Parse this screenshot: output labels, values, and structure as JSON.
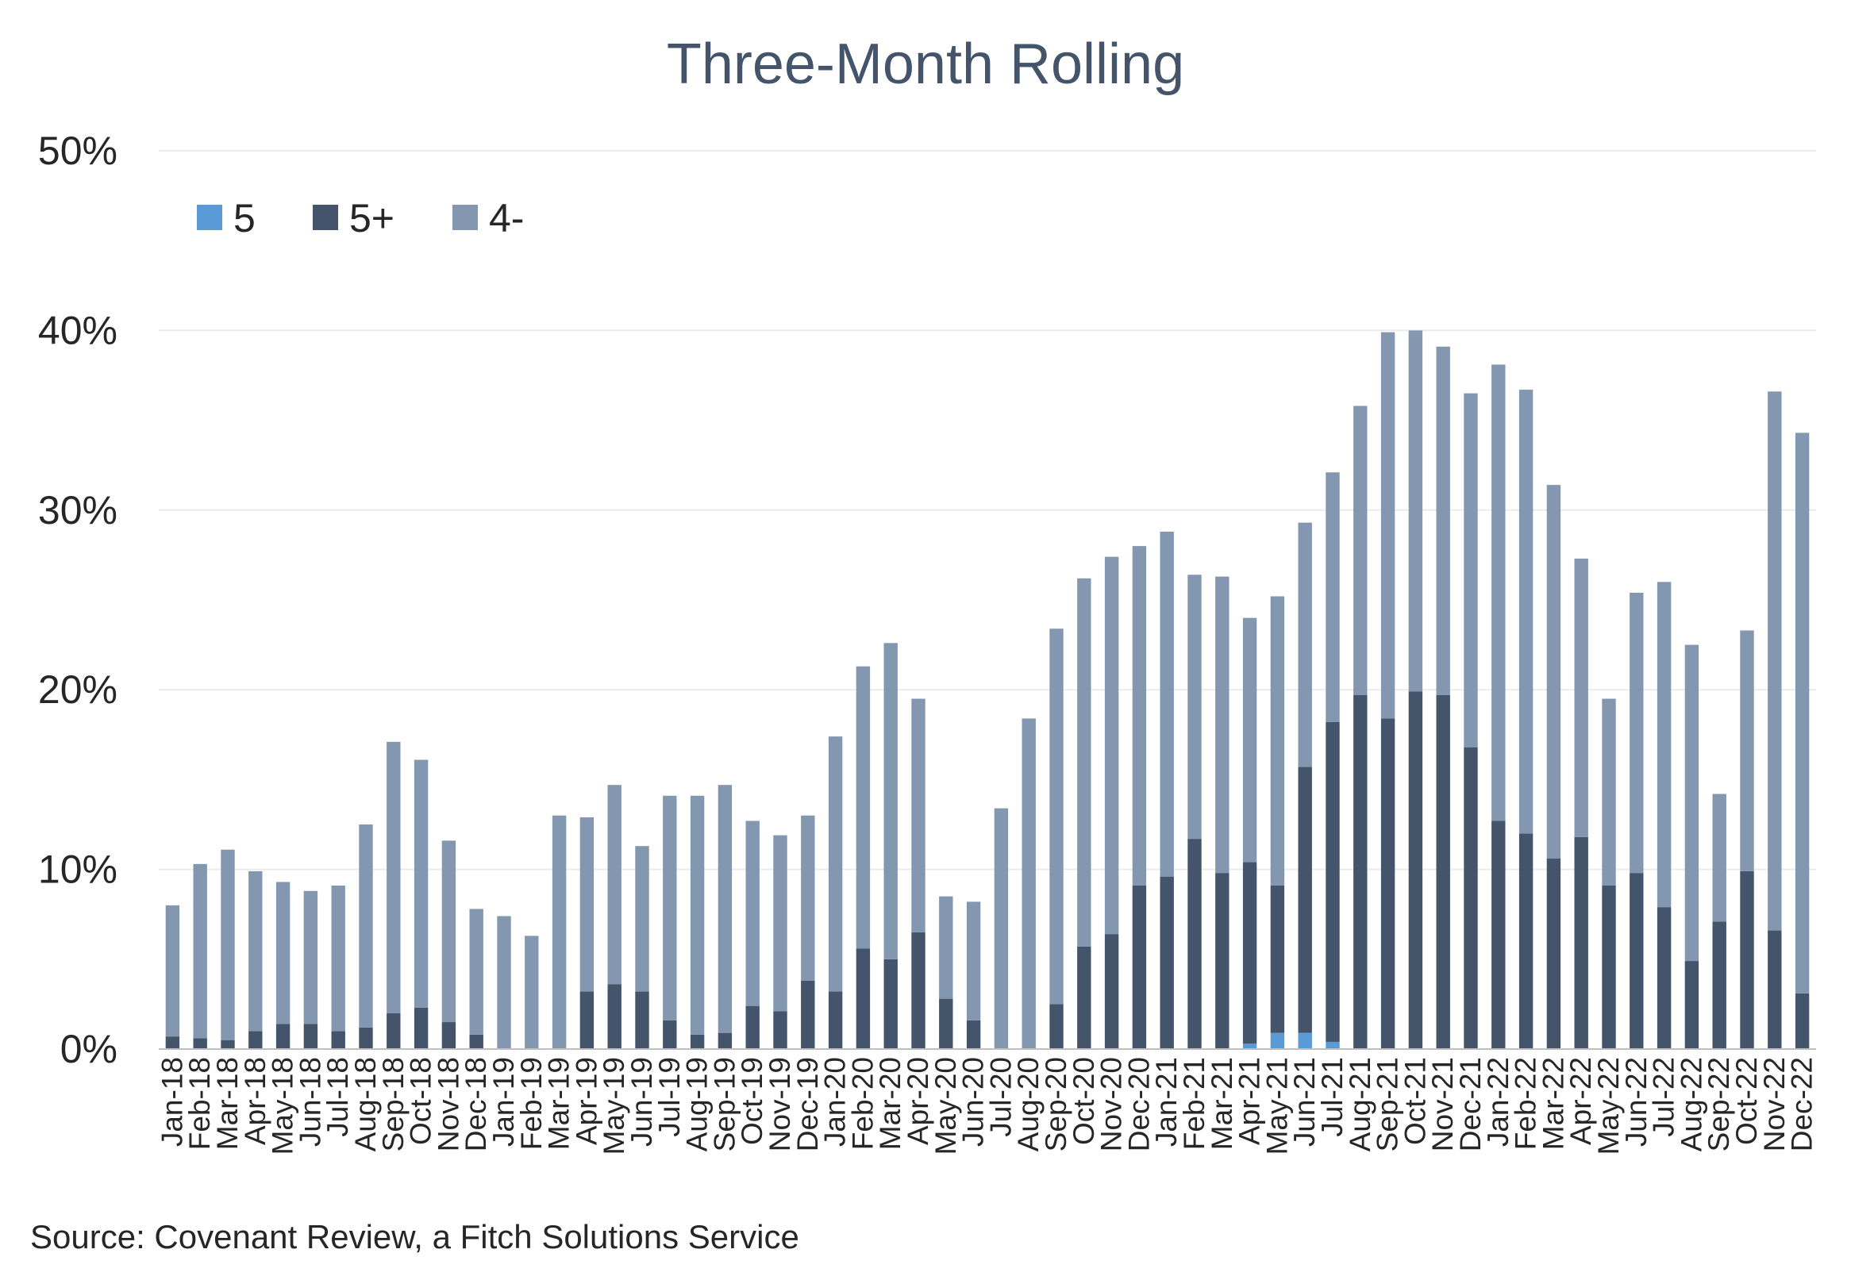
{
  "chart_data": {
    "type": "bar",
    "stacked": true,
    "title": "Three-Month Rolling",
    "ylim": [
      0,
      50
    ],
    "yticks": [
      "0%",
      "10%",
      "20%",
      "30%",
      "40%",
      "50%"
    ],
    "grid": true,
    "legend_position": "top-left",
    "categories": [
      "Jan-18",
      "Feb-18",
      "Mar-18",
      "Apr-18",
      "May-18",
      "Jun-18",
      "Jul-18",
      "Aug-18",
      "Sep-18",
      "Oct-18",
      "Nov-18",
      "Dec-18",
      "Jan-19",
      "Feb-19",
      "Mar-19",
      "Apr-19",
      "May-19",
      "Jun-19",
      "Jul-19",
      "Aug-19",
      "Sep-19",
      "Oct-19",
      "Nov-19",
      "Dec-19",
      "Jan-20",
      "Feb-20",
      "Mar-20",
      "Apr-20",
      "May-20",
      "Jun-20",
      "Jul-20",
      "Aug-20",
      "Sep-20",
      "Oct-20",
      "Nov-20",
      "Dec-20",
      "Jan-21",
      "Feb-21",
      "Mar-21",
      "Apr-21",
      "May-21",
      "Jun-21",
      "Jul-21",
      "Aug-21",
      "Sep-21",
      "Oct-21",
      "Nov-21",
      "Dec-21",
      "Jan-22",
      "Feb-22",
      "Mar-22",
      "Apr-22",
      "May-22",
      "Jun-22",
      "Jul-22",
      "Aug-22",
      "Sep-22",
      "Oct-22",
      "Nov-22",
      "Dec-22"
    ],
    "series": [
      {
        "name": "5",
        "color": "#5b9bd5",
        "values": [
          0,
          0,
          0,
          0,
          0,
          0,
          0,
          0,
          0,
          0,
          0,
          0,
          0,
          0,
          0,
          0,
          0,
          0,
          0,
          0,
          0,
          0,
          0,
          0,
          0,
          0,
          0,
          0,
          0,
          0,
          0,
          0,
          0,
          0,
          0,
          0,
          0,
          0,
          0,
          0.3,
          0.9,
          0.9,
          0.4,
          0,
          0,
          0,
          0,
          0,
          0,
          0,
          0,
          0,
          0,
          0,
          0,
          0,
          0,
          0,
          0,
          0
        ]
      },
      {
        "name": "5+",
        "color": "#44546a",
        "values": [
          0.7,
          0.6,
          0.5,
          1.0,
          1.4,
          1.4,
          1.0,
          1.2,
          2.0,
          2.3,
          1.5,
          0.8,
          0,
          0,
          0,
          3.2,
          3.6,
          3.2,
          1.6,
          0.8,
          0.9,
          2.4,
          2.1,
          3.8,
          3.2,
          5.6,
          5.0,
          6.5,
          2.8,
          1.6,
          0,
          0,
          2.5,
          5.7,
          6.4,
          9.1,
          9.6,
          11.7,
          9.8,
          10.1,
          8.2,
          14.8,
          17.8,
          19.7,
          18.4,
          19.9,
          19.7,
          16.8,
          12.7,
          12.0,
          10.6,
          11.8,
          9.1,
          9.8,
          7.9,
          4.9,
          7.1,
          9.9,
          6.6,
          3.1
        ]
      },
      {
        "name": "4-",
        "color": "#8497b0",
        "values": [
          7.3,
          9.7,
          10.6,
          8.9,
          7.9,
          7.4,
          8.1,
          11.3,
          15.1,
          13.8,
          10.1,
          7.0,
          7.4,
          6.3,
          13.0,
          9.7,
          11.1,
          8.1,
          12.5,
          13.3,
          13.8,
          10.3,
          9.8,
          9.2,
          14.2,
          15.7,
          17.6,
          13.0,
          5.7,
          6.6,
          13.4,
          18.4,
          20.9,
          20.5,
          21.0,
          18.9,
          19.2,
          14.7,
          16.5,
          13.6,
          16.1,
          13.6,
          13.9,
          16.1,
          21.5,
          20.1,
          19.4,
          19.7,
          25.4,
          24.7,
          20.8,
          15.5,
          10.4,
          15.6,
          18.1,
          17.6,
          7.1,
          13.4,
          30.0,
          31.2
        ]
      }
    ],
    "source": "Source: Covenant Review, a Fitch Solutions Service"
  }
}
